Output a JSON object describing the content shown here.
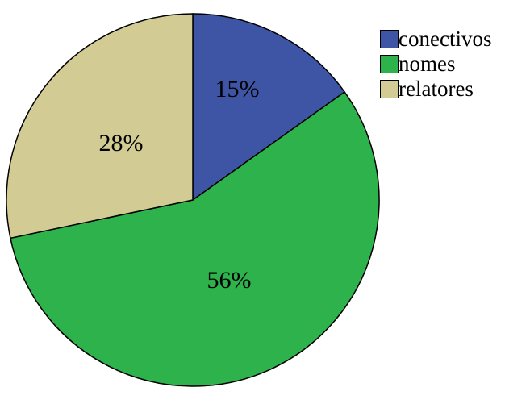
{
  "chart_data": {
    "type": "pie",
    "title": "",
    "slices": [
      {
        "label": "conectivos",
        "value": 15,
        "display": "15%",
        "color": "#3E55A6"
      },
      {
        "label": "nomes",
        "value": 56,
        "display": "56%",
        "color": "#2EB34C"
      },
      {
        "label": "relatores",
        "value": 28,
        "display": "28%",
        "color": "#D2CC94"
      }
    ],
    "start_angle_deg": 0,
    "direction": "clockwise",
    "legend_position": "top-right",
    "legend_order": [
      "conectivos",
      "nomes",
      "relatores"
    ],
    "outline_color": "#000000",
    "label_color": "#000000",
    "background": "#FFFFFF"
  }
}
